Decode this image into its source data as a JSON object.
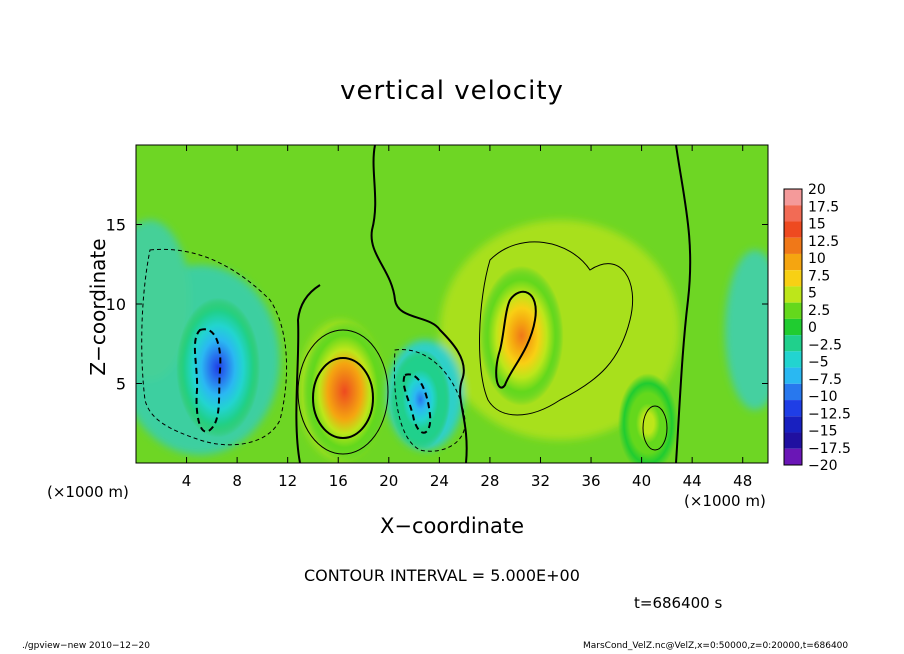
{
  "chart_data": {
    "type": "heatmap",
    "title": "vertical velocity",
    "xlabel": "X−coordinate",
    "ylabel": "Z−coordinate",
    "x_unit": "(×1000 m)",
    "y_unit": "(×1000 m)",
    "xlim": [
      0,
      50
    ],
    "ylim": [
      0,
      20
    ],
    "x_ticks": [
      4,
      8,
      12,
      16,
      20,
      24,
      28,
      32,
      36,
      40,
      44,
      48
    ],
    "y_ticks": [
      5,
      10,
      15
    ],
    "colorbar": {
      "levels": [
        "20",
        "17.5",
        "15",
        "12.5",
        "10",
        "7.5",
        "5",
        "2.5",
        "0",
        "−2.5",
        "−5",
        "−7.5",
        "−10",
        "−12.5",
        "−15",
        "−17.5",
        "−20"
      ],
      "colors": [
        "#f49a9a",
        "#f26b55",
        "#ee4a20",
        "#f07818",
        "#f5a510",
        "#f8d014",
        "#bde61a",
        "#64d81c",
        "#20cc30",
        "#20d08c",
        "#22d4d0",
        "#2ab8f2",
        "#2878ee",
        "#1f3ee6",
        "#1820c0",
        "#2010a0",
        "#6a16b6"
      ]
    },
    "features": [
      {
        "sign": "negative",
        "x": 6.5,
        "z": 6,
        "peak": -12
      },
      {
        "sign": "positive",
        "x": 16.5,
        "z": 4.5,
        "peak": 15
      },
      {
        "sign": "negative",
        "x": 22.5,
        "z": 4,
        "peak": -9
      },
      {
        "sign": "positive",
        "x": 30.5,
        "z": 8,
        "peak": 12
      },
      {
        "sign": "positive",
        "x": 40.5,
        "z": 2.5,
        "peak": 6
      }
    ],
    "contour_interval": "CONTOUR INTERVAL = 5.000E+00",
    "time": "t=686400  s"
  },
  "footer": {
    "left": "./gpview−new   2010−12−20",
    "right": "MarsCond_VelZ.nc@VelZ,x=0:50000,z=0:20000,t=686400"
  }
}
